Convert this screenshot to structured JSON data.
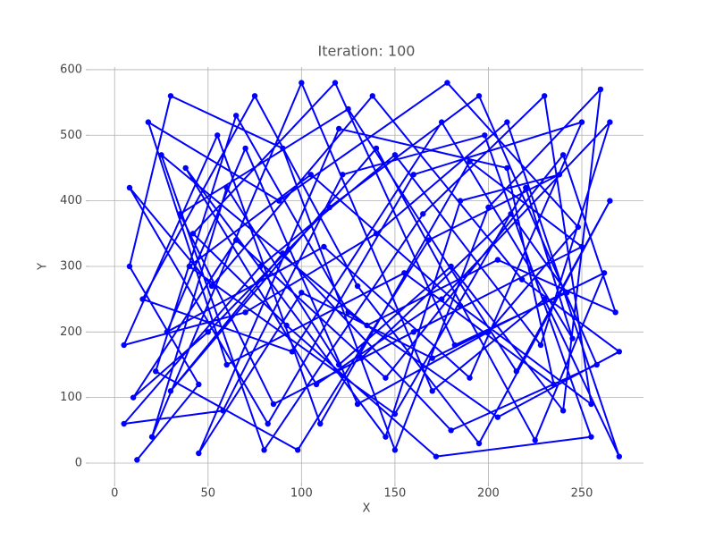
{
  "chart_data": {
    "type": "line",
    "title": "Iteration: 100",
    "x_label": "X",
    "y_label": "Y",
    "color": "#0000ff",
    "grid": true,
    "xlim": [
      -13.5,
      283
    ],
    "ylim": [
      -30,
      604
    ],
    "xticks": [
      0,
      50,
      100,
      150,
      200,
      250
    ],
    "yticks": [
      0,
      100,
      200,
      300,
      400,
      500,
      600
    ],
    "x": [
      12,
      45,
      8,
      30,
      90,
      150,
      200,
      260,
      240,
      180,
      120,
      60,
      20,
      100,
      170,
      230,
      270,
      210,
      140,
      70,
      5,
      55,
      110,
      190,
      250,
      160,
      85,
      35,
      125,
      215,
      265,
      195,
      130,
      75,
      15,
      95,
      175,
      245,
      220,
      150,
      40,
      105,
      185,
      255,
      230,
      165,
      80,
      25,
      135,
      205,
      268,
      240,
      145,
      65,
      10,
      50,
      115,
      195,
      258,
      180,
      90,
      30,
      140,
      225,
      262,
      170,
      100,
      45,
      120,
      210,
      235,
      155,
      60,
      18,
      88,
      178,
      248,
      200,
      130,
      70,
      28,
      112,
      190,
      250,
      160,
      82,
      8,
      52,
      138,
      218,
      270,
      205,
      125,
      65,
      22,
      98,
      168,
      238,
      185,
      145,
      38,
      108,
      175,
      265,
      228,
      150,
      78,
      5,
      58,
      122,
      198,
      255,
      172,
      92,
      42,
      118,
      182,
      242,
      212,
      132
    ],
    "values": [
      5,
      120,
      300,
      560,
      480,
      20,
      390,
      570,
      80,
      300,
      150,
      420,
      40,
      580,
      110,
      250,
      10,
      520,
      350,
      230,
      180,
      500,
      60,
      460,
      330,
      200,
      90,
      380,
      540,
      140,
      400,
      30,
      270,
      560,
      250,
      170,
      520,
      190,
      420,
      75,
      300,
      440,
      240,
      90,
      560,
      380,
      20,
      470,
      210,
      310,
      230,
      470,
      130,
      340,
      100,
      200,
      390,
      560,
      150,
      50,
      320,
      110,
      480,
      35,
      290,
      160,
      260,
      15,
      510,
      450,
      120,
      290,
      150,
      520,
      400,
      580,
      360,
      200,
      90,
      480,
      200,
      330,
      130,
      520,
      440,
      60,
      420,
      270,
      560,
      280,
      170,
      70,
      230,
      530,
      140,
      20,
      340,
      440,
      400,
      40,
      450,
      120,
      250,
      520,
      180,
      470,
      300,
      60,
      80,
      440,
      500,
      40,
      10,
      210,
      350,
      580,
      180,
      260,
      380,
      160
    ]
  }
}
